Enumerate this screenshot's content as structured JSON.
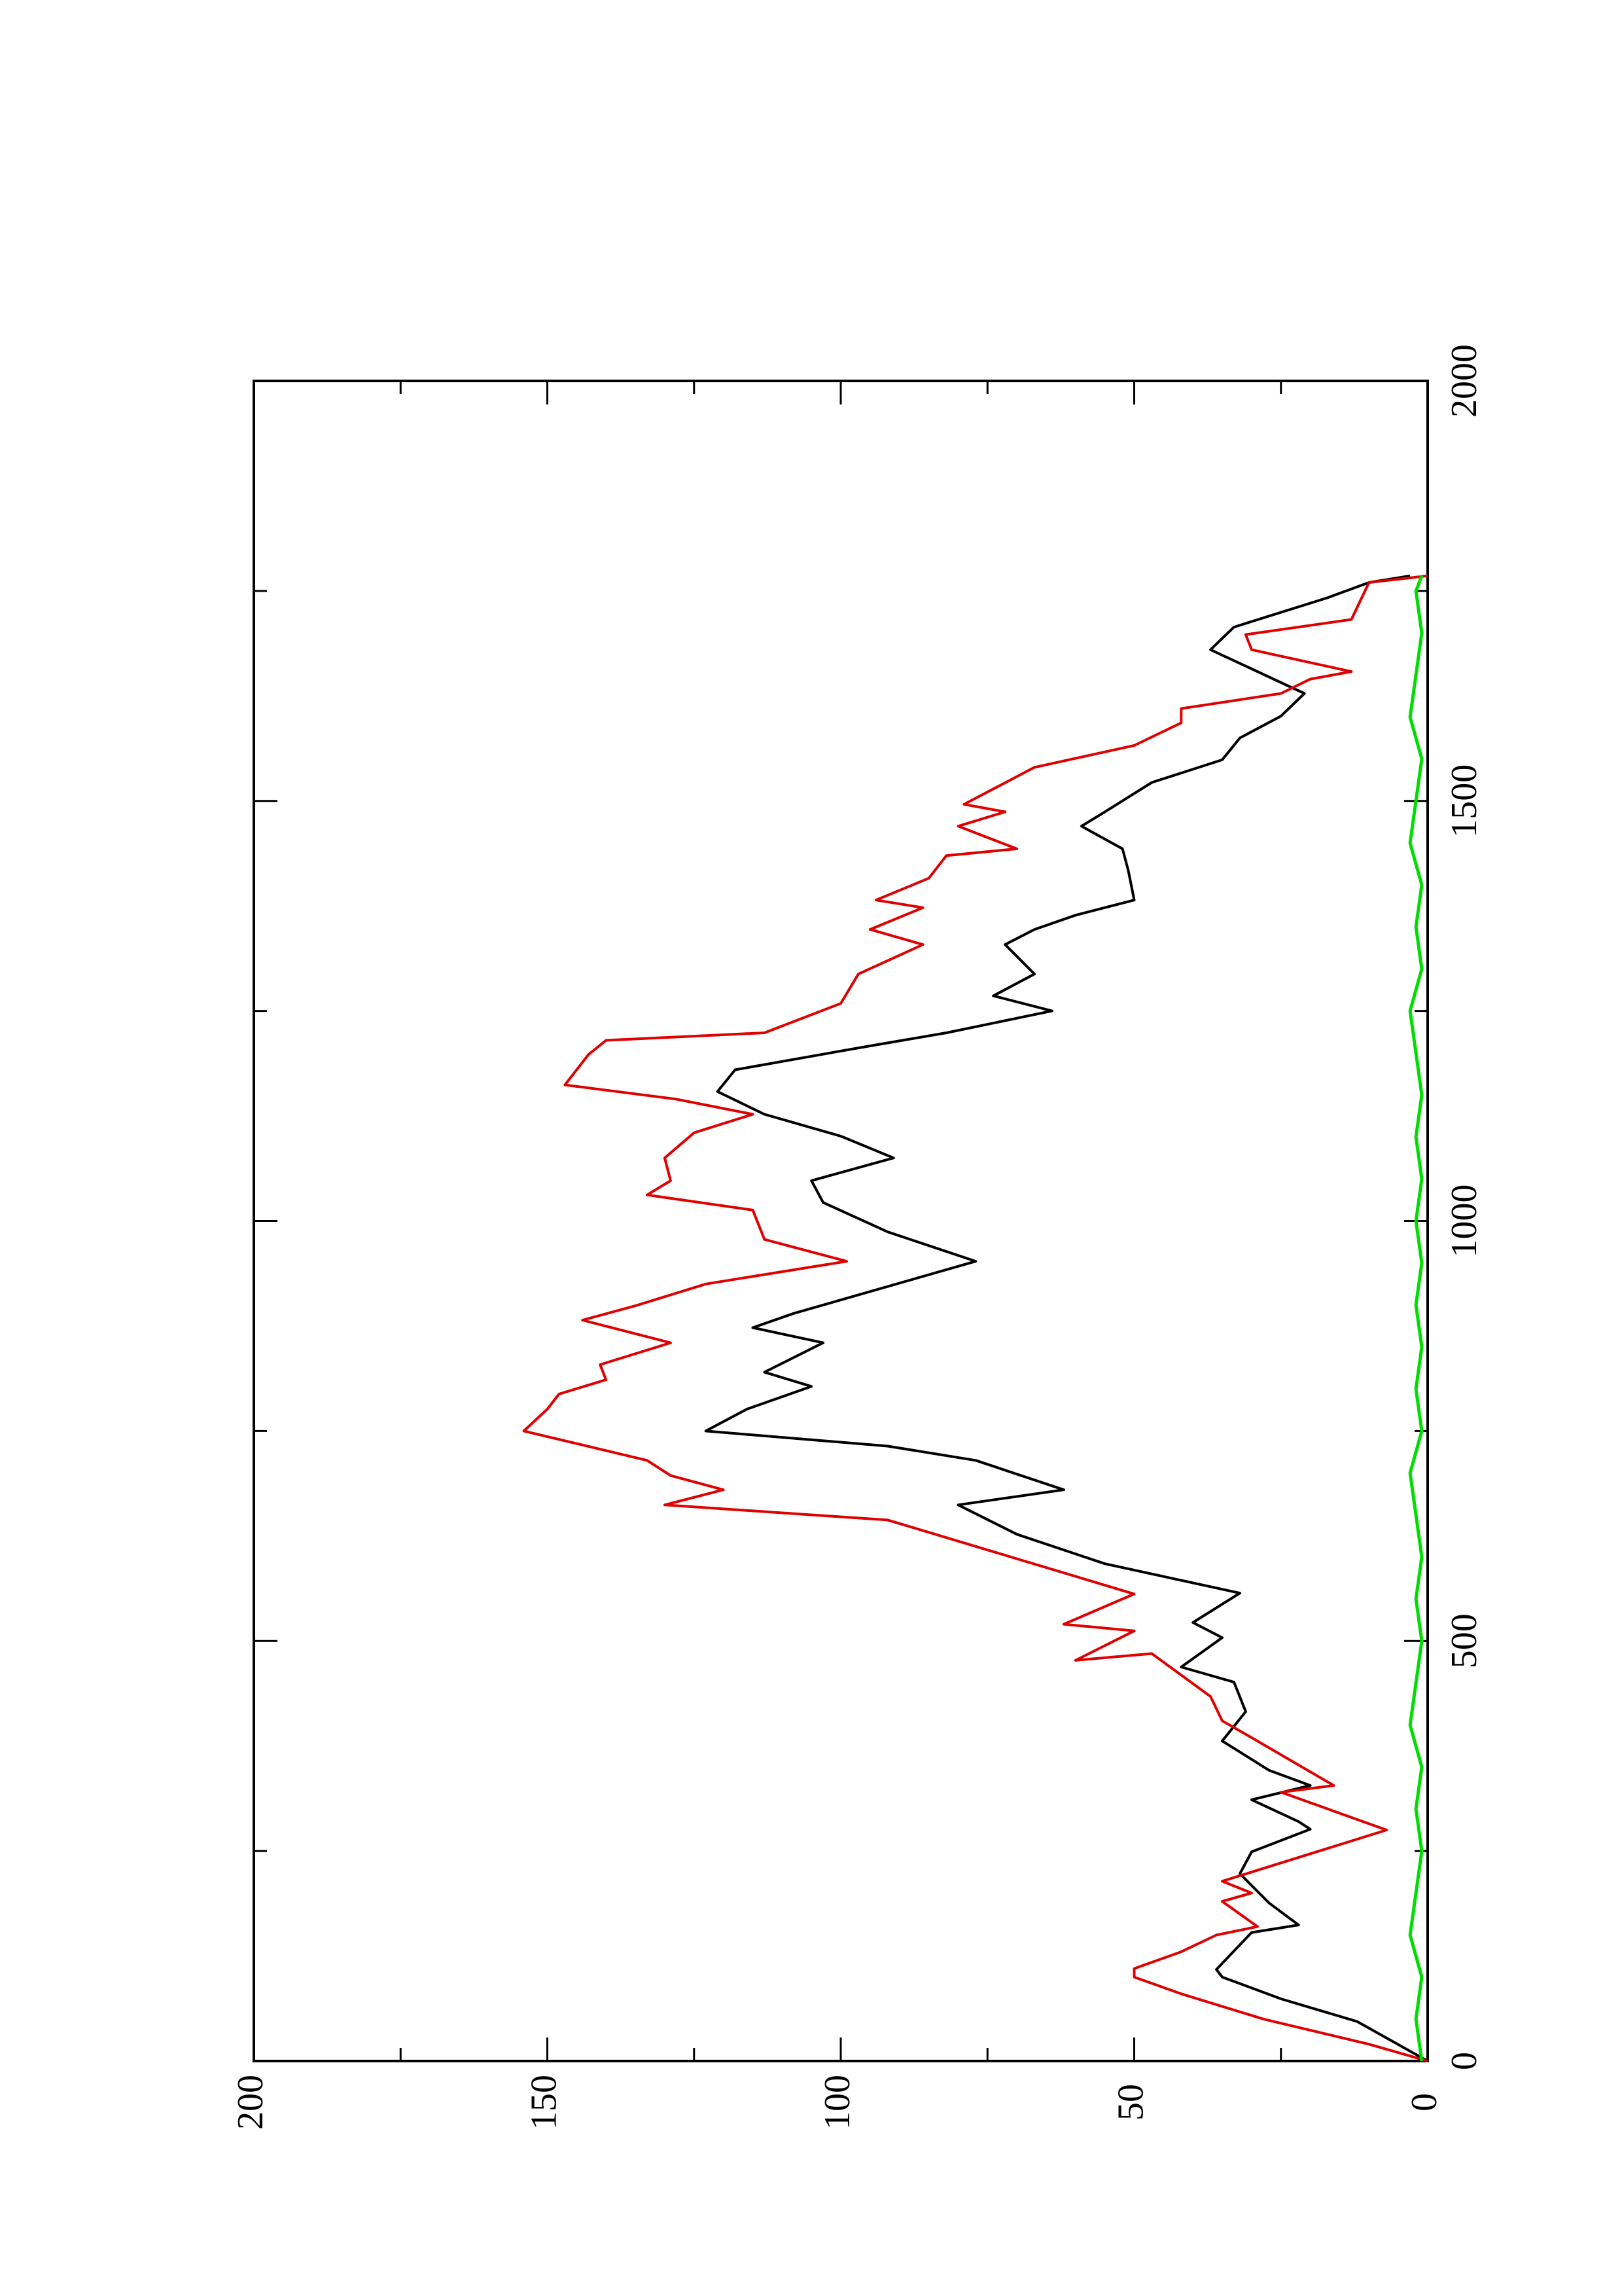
{
  "chart_data": {
    "type": "line",
    "orientation": "rotated",
    "xlim": [
      0,
      2000
    ],
    "xticks": [
      0,
      500,
      1000,
      1500,
      2000
    ],
    "xminorticks": [
      250,
      750,
      1250,
      1750
    ],
    "ylim": [
      0,
      200
    ],
    "yticks": [
      0,
      50,
      100,
      150,
      200
    ],
    "yminorticks": [
      25,
      75,
      125,
      175
    ],
    "series": [
      {
        "color": "#000000",
        "x": [
          0,
          47,
          74,
          100,
          109,
          153,
          162,
          188,
          223,
          249,
          276,
          285,
          311,
          328,
          346,
          381,
          416,
          451,
          469,
          504,
          522,
          557,
          592,
          627,
          662,
          680,
          715,
          732,
          750,
          776,
          803,
          820,
          855,
          873,
          890,
          908,
          952,
          987,
          1022,
          1048,
          1075,
          1101,
          1127,
          1154,
          1180,
          1206,
          1224,
          1250,
          1268,
          1294,
          1329,
          1347,
          1364,
          1382,
          1417,
          1443,
          1470,
          1487,
          1522,
          1549,
          1575,
          1601,
          1628,
          1680,
          1707,
          1742,
          1760,
          1768
        ],
        "values": [
          0,
          12,
          25,
          35,
          36,
          30,
          22,
          27,
          32,
          30,
          20,
          22,
          30,
          20,
          27,
          35,
          31,
          33,
          42,
          35,
          40,
          32,
          55,
          70,
          80,
          62,
          77,
          92,
          123,
          116,
          105,
          113,
          103,
          115,
          108,
          99,
          77,
          92,
          103,
          105,
          91,
          100,
          113,
          121,
          118,
          97,
          82,
          64,
          74,
          67,
          72,
          67,
          60,
          50,
          51,
          52,
          59,
          55,
          47,
          35,
          32,
          25,
          21,
          37,
          33,
          17,
          10,
          3
        ]
      },
      {
        "color": "#e00000",
        "x": [
          0,
          20,
          50,
          80,
          100,
          110,
          130,
          150,
          160,
          190,
          200,
          214,
          275,
          320,
          328,
          385,
          405,
          434,
          485,
          477,
          512,
          520,
          556,
          644,
          662,
          680,
          697,
          715,
          750,
          776,
          794,
          811,
          829,
          855,
          882,
          899,
          925,
          952,
          978,
          1013,
          1031,
          1048,
          1075,
          1105,
          1127,
          1145,
          1162,
          1198,
          1215,
          1224,
          1259,
          1294,
          1329,
          1347,
          1373,
          1382,
          1408,
          1435,
          1443,
          1470,
          1487,
          1496,
          1540,
          1566,
          1593,
          1610,
          1628,
          1645,
          1654,
          1680,
          1698,
          1716,
          1760,
          1768
        ],
        "values": [
          0,
          10,
          28,
          42,
          50,
          50,
          42,
          36,
          29,
          35,
          30,
          35,
          7,
          25,
          16,
          30,
          35,
          37,
          47,
          60,
          50,
          62,
          50,
          92,
          130,
          120,
          129,
          133,
          154,
          150,
          148,
          140,
          141,
          129,
          144,
          135,
          123,
          99,
          113,
          115,
          133,
          129,
          130,
          125,
          115,
          128,
          147,
          143,
          140,
          113,
          100,
          97,
          86,
          95,
          86,
          94,
          85,
          82,
          70,
          80,
          72,
          79,
          67,
          50,
          42,
          42,
          25,
          20,
          13,
          30,
          31,
          13,
          10,
          0
        ]
      },
      {
        "color": "#00dd00",
        "x": [
          0,
          50,
          100,
          150,
          200,
          250,
          300,
          350,
          400,
          450,
          500,
          550,
          600,
          650,
          700,
          750,
          800,
          850,
          900,
          950,
          1000,
          1050,
          1100,
          1150,
          1200,
          1250,
          1300,
          1350,
          1400,
          1450,
          1500,
          1550,
          1600,
          1650,
          1700,
          1750,
          1768
        ],
        "values": [
          1,
          2,
          1,
          3,
          2,
          1,
          2,
          1,
          3,
          2,
          1,
          2,
          1,
          2,
          3,
          1,
          2,
          1,
          2,
          1,
          2,
          1,
          2,
          1,
          2,
          3,
          1,
          2,
          1,
          3,
          2,
          1,
          3,
          2,
          1,
          2,
          1
        ]
      }
    ]
  }
}
